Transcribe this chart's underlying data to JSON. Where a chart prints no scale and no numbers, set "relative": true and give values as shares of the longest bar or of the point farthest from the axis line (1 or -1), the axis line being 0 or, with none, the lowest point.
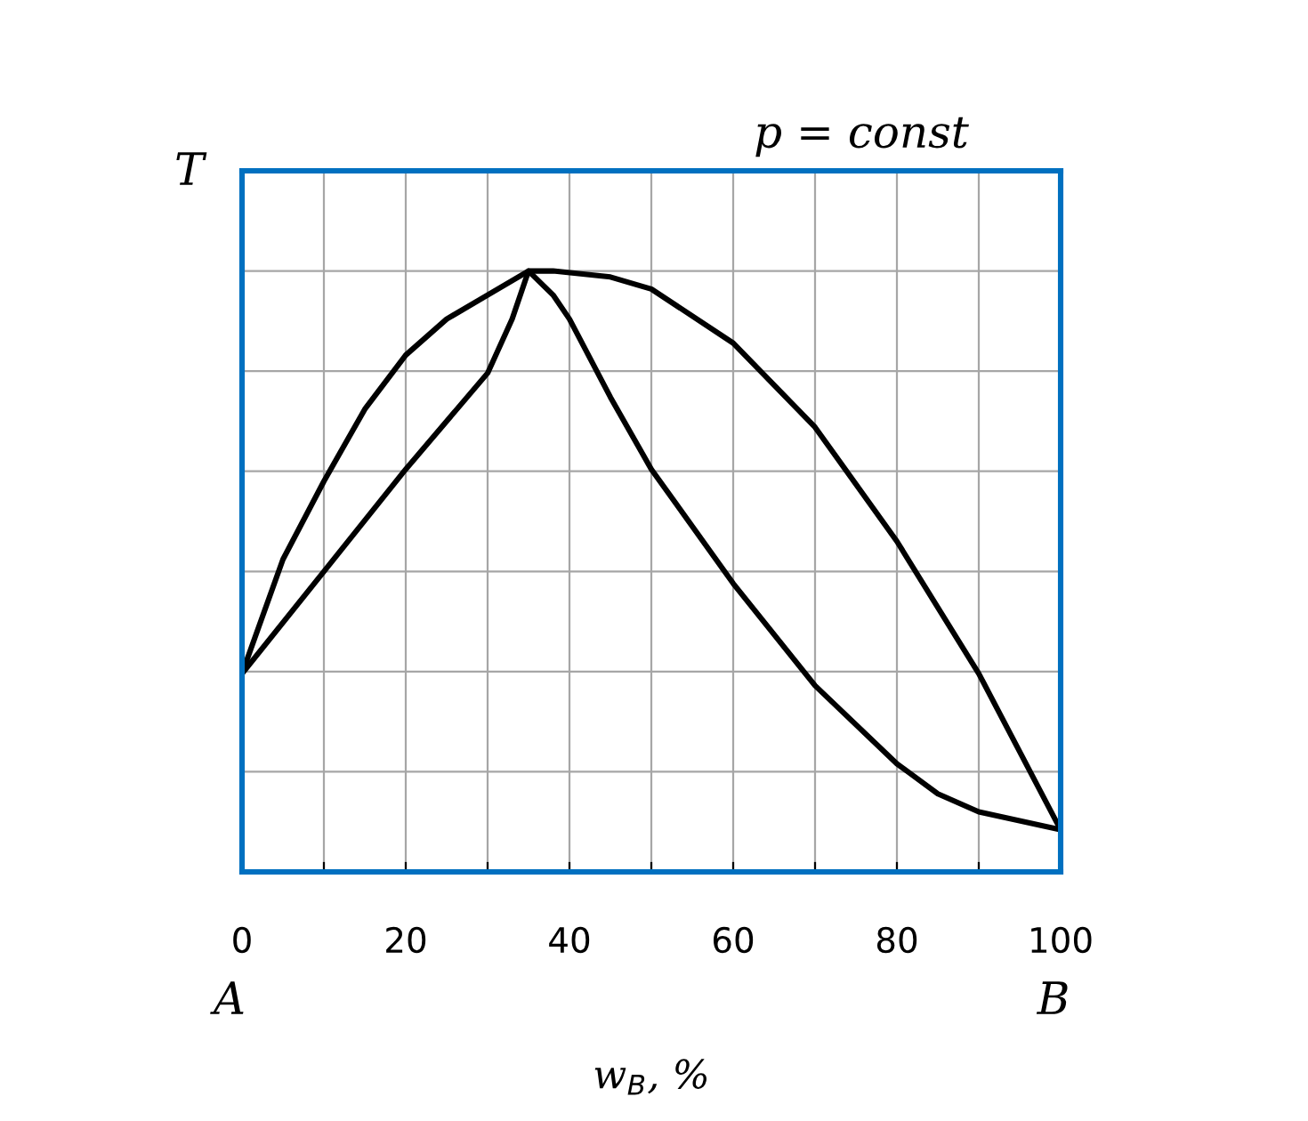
{
  "chart_data": {
    "type": "line",
    "relative": true,
    "xlabel": "w$_{B}$, %",
    "ylabel": "T",
    "annotations": [
      "p = const",
      "A",
      "B"
    ],
    "xlim": [
      0,
      100
    ],
    "xticks": [
      0,
      {
        "value": 10,
        "label": null
      },
      20,
      {
        "value": 30,
        "label": null
      },
      40,
      {
        "value": 50,
        "label": null
      },
      60,
      {
        "value": 70,
        "label": null
      },
      80,
      {
        "value": 90,
        "label": null
      },
      100
    ],
    "grid": true,
    "marker": "none",
    "line_style": "solid",
    "series": [
      {
        "color": "#000000",
        "x": [
          0,
          5,
          10,
          15,
          20,
          25,
          30,
          35,
          38,
          45,
          50,
          60,
          70,
          80,
          90,
          100
        ],
        "values": [
          0.33,
          0.52,
          0.65,
          0.77,
          0.86,
          0.92,
          0.96,
          1.0,
          1.0,
          0.99,
          0.97,
          0.88,
          0.74,
          0.55,
          0.33,
          0.07
        ]
      },
      {
        "color": "#000000",
        "x": [
          0,
          10,
          20,
          30,
          33,
          35,
          38,
          40,
          45,
          50,
          60,
          70,
          80,
          85,
          90,
          100
        ],
        "values": [
          0.33,
          0.5,
          0.67,
          0.83,
          0.92,
          1.0,
          0.96,
          0.92,
          0.79,
          0.67,
          0.48,
          0.31,
          0.18,
          0.13,
          0.1,
          0.07
        ]
      }
    ]
  }
}
